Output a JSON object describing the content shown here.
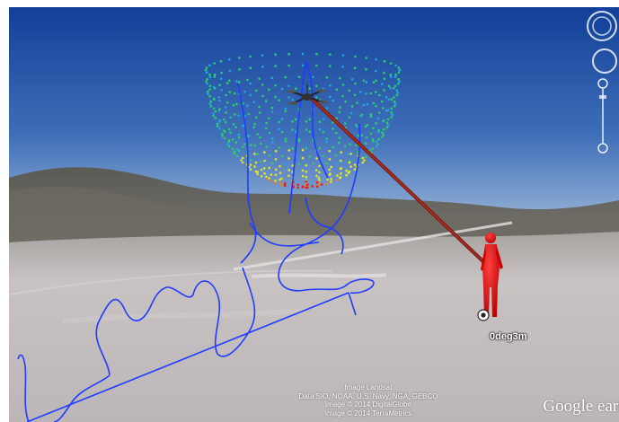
{
  "app": {
    "name": "Google Earth"
  },
  "placemark": {
    "label": "0deg3m",
    "icon": "placemark-circle-icon"
  },
  "attribution": {
    "lines": [
      "Image Landsat",
      "Data SIO, NOAA, U.S. Navy, NGA, GEBCO",
      "Image © 2014 DigitalGlobe",
      "Image © 2014 TerraMetrics"
    ]
  },
  "logo": {
    "text": "Google earth"
  },
  "navigation": {
    "icons": [
      "look-joystick-icon",
      "move-joystick-icon",
      "zoom-slider-icon",
      "zoom-in-icon",
      "zoom-out-icon"
    ]
  },
  "overlays": {
    "path_color": "#1f3cff",
    "beam_color": "#8b1a1a",
    "figure_color": "#e8151b",
    "dome_colors": [
      "#2ad06a",
      "#1fa7e8",
      "#e2e820",
      "#f07a1e",
      "#f01818"
    ]
  },
  "colors": {
    "sky_top": "#16459c",
    "sky_horizon": "#9db8d6",
    "ground": "#c9c4c6"
  }
}
